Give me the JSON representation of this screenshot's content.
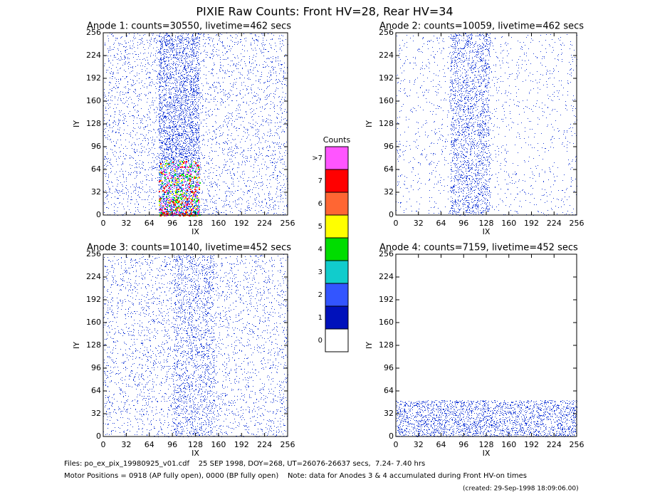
{
  "title": "PIXIE Raw Counts:  Front HV=28, Rear HV=34",
  "chart_data": [
    {
      "type": "scatter",
      "title": "Anode 1: counts=30550, livetime=462 secs",
      "x_label": "IX",
      "y_label": "IY",
      "xlim": [
        0,
        256
      ],
      "ylim": [
        0,
        256
      ],
      "xticks": [
        0,
        32,
        64,
        96,
        128,
        160,
        192,
        224,
        256
      ],
      "yticks": [
        0,
        32,
        64,
        96,
        128,
        160,
        192,
        224,
        256
      ]
    },
    {
      "type": "scatter",
      "title": "Anode 2: counts=10059, livetime=462 secs",
      "x_label": "IX",
      "y_label": "IY",
      "xlim": [
        0,
        256
      ],
      "ylim": [
        0,
        256
      ],
      "xticks": [
        0,
        32,
        64,
        96,
        128,
        160,
        192,
        224,
        256
      ],
      "yticks": [
        0,
        32,
        64,
        96,
        128,
        160,
        192,
        224,
        256
      ]
    },
    {
      "type": "scatter",
      "title": "Anode 3: counts=10140, livetime=452 secs",
      "x_label": "IX",
      "y_label": "IY",
      "xlim": [
        0,
        256
      ],
      "ylim": [
        0,
        256
      ],
      "xticks": [
        0,
        32,
        64,
        96,
        128,
        160,
        192,
        224,
        256
      ],
      "yticks": [
        0,
        32,
        64,
        96,
        128,
        160,
        192,
        224,
        256
      ]
    },
    {
      "type": "scatter",
      "title": "Anode 4: counts=7159, livetime=452 secs",
      "x_label": "IX",
      "y_label": "IY",
      "xlim": [
        0,
        256
      ],
      "ylim": [
        0,
        256
      ],
      "xticks": [
        0,
        32,
        64,
        96,
        128,
        160,
        192,
        224,
        256
      ],
      "yticks": [
        0,
        32,
        64,
        96,
        128,
        160,
        192,
        224,
        256
      ]
    }
  ],
  "colorbar": {
    "title": "Counts",
    "labels": [
      ">7",
      "7",
      "6",
      "5",
      "4",
      "3",
      "2",
      "1",
      "0"
    ],
    "colors": [
      "#ff55ff",
      "#ff0000",
      "#ff6633",
      "#ffff00",
      "#00dd00",
      "#11cccc",
      "#3355ff",
      "#0011bb",
      "#ffffff"
    ]
  },
  "footer": [
    "Files: po_ex_pix_19980925_v01.cdf    25 SEP 1998, DOY=268, UT=26076-26637 secs,  7.24- 7.40 hrs",
    "Motor Positions = 0918 (AP fully open), 0000 (BP fully open)    Note: data for Anodes 3 & 4 accumulated during Front HV-on times",
    "(created: 29-Sep-1998 18:09:06.00)"
  ]
}
